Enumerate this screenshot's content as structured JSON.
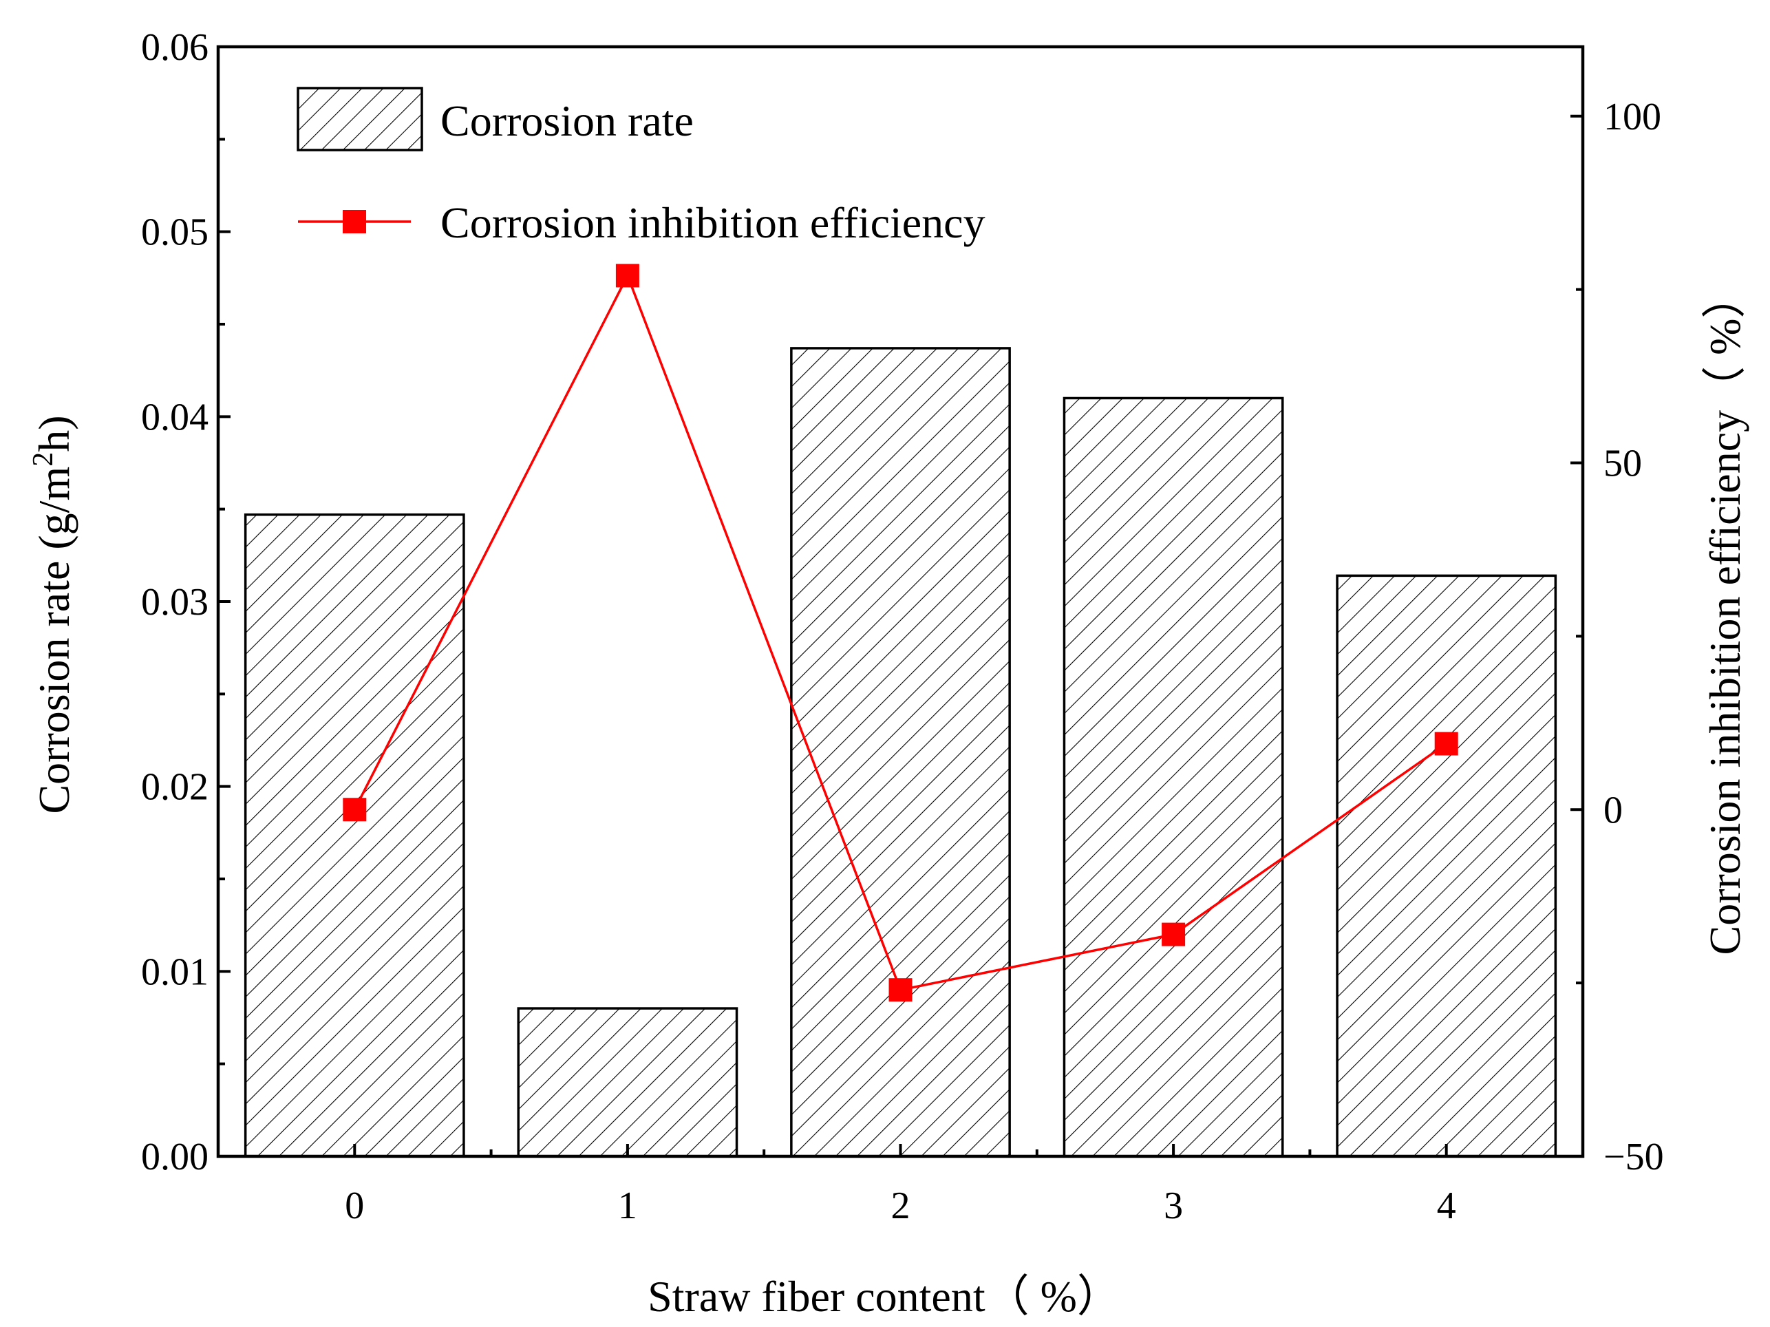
{
  "chart_data": {
    "type": "bar+line",
    "categories": [
      "0",
      "1",
      "2",
      "3",
      "4"
    ],
    "xlabel": "Straw fiber content（  %）",
    "series": [
      {
        "name": "Corrosion rate",
        "type": "bar",
        "axis": "left",
        "pattern": "hatched",
        "values": [
          0.0347,
          0.008,
          0.0437,
          0.041,
          0.0314
        ]
      },
      {
        "name": "Corrosion inhibition efficiency",
        "type": "line",
        "axis": "right",
        "marker": "square",
        "color": "#ff0000",
        "values": [
          0,
          77,
          -26,
          -18,
          9.5
        ]
      }
    ],
    "y_left": {
      "label_main": "Corrosion rate (g/m",
      "label_sup": "2",
      "label_end": "h)",
      "ylim": [
        0,
        0.06
      ],
      "ticks": [
        0.0,
        0.01,
        0.02,
        0.03,
        0.04,
        0.05,
        0.06
      ],
      "tick_labels": [
        "0.00",
        "0.01",
        "0.02",
        "0.03",
        "0.04",
        "0.05",
        "0.06"
      ]
    },
    "y_right": {
      "label": "Corrosion inhibition efficiency（  %）",
      "ylim": [
        -50,
        110
      ],
      "ticks": [
        -50,
        0,
        50,
        100
      ],
      "tick_labels": [
        "−50",
        "0",
        "50",
        "100"
      ],
      "minor_ticks": [
        -25,
        25,
        75
      ]
    },
    "legend": {
      "placement": "top-left",
      "entries": [
        "Corrosion rate",
        "Corrosion inhibition efficiency"
      ]
    }
  }
}
